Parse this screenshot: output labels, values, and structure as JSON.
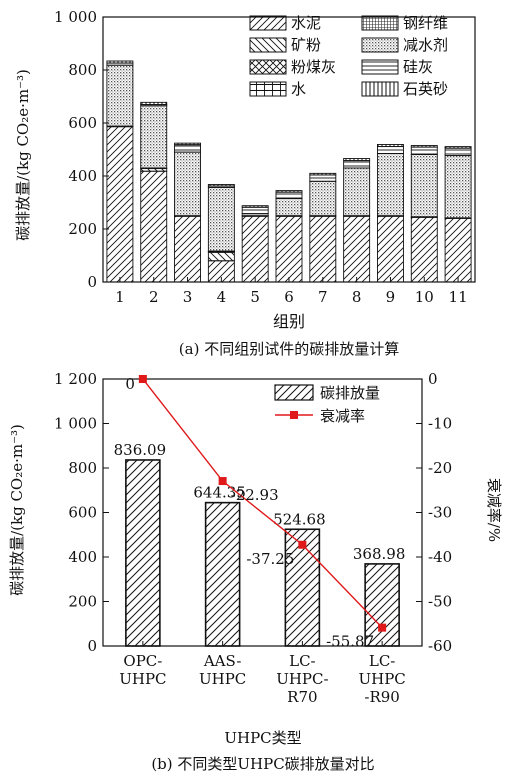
{
  "chart_data": [
    {
      "type": "bar",
      "stacked": true,
      "caption": "(a) 不同组别试件的碳排放量计算",
      "xlabel": "组别",
      "ylabel": "碳排放量/(kg CO₂e·m⁻³)",
      "ylim": [
        0,
        1000
      ],
      "yticks": [
        "0",
        "200",
        "400",
        "600",
        "800",
        "1 000"
      ],
      "categories": [
        "1",
        "2",
        "3",
        "4",
        "5",
        "6",
        "7",
        "8",
        "9",
        "10",
        "11"
      ],
      "legend_position": "top-right",
      "series": [
        {
          "name": "水泥",
          "pattern": "diag-fwd",
          "values": [
            586,
            418,
            248,
            80,
            248,
            248,
            248,
            248,
            248,
            244,
            240
          ]
        },
        {
          "name": "矿粉",
          "pattern": "diag-back",
          "values": [
            0,
            10,
            0,
            32,
            0,
            0,
            0,
            0,
            0,
            0,
            0
          ]
        },
        {
          "name": "粉煤灰",
          "pattern": "cross",
          "values": [
            0,
            0,
            0,
            3,
            0,
            0,
            0,
            0,
            0,
            0,
            0
          ]
        },
        {
          "name": "水",
          "pattern": "grid",
          "values": [
            2,
            2,
            2,
            2,
            2,
            2,
            2,
            2,
            2,
            2,
            2
          ]
        },
        {
          "name": "钢纤维",
          "pattern": "dense-grid",
          "values": [
            0,
            0,
            0,
            0,
            0,
            0,
            0,
            0,
            0,
            0,
            0
          ]
        },
        {
          "name": "减水剂",
          "pattern": "dots",
          "values": [
            230,
            235,
            240,
            240,
            8,
            65,
            130,
            180,
            235,
            235,
            235
          ]
        },
        {
          "name": "硅灰",
          "pattern": "horizontal",
          "values": [
            8,
            5,
            28,
            5,
            24,
            24,
            24,
            28,
            26,
            28,
            28
          ]
        },
        {
          "name": "石英砂",
          "pattern": "vertical",
          "values": [
            8,
            8,
            6,
            6,
            6,
            6,
            6,
            8,
            8,
            6,
            6
          ]
        }
      ]
    },
    {
      "type": "bar+line",
      "caption": "(b) 不同类型UHPC碳排放量对比",
      "xlabel": "UHPC类型",
      "ylabel_left": "碳排放量/(kg CO₂e·m⁻³)",
      "ylabel_right": "衰减率/%",
      "ylim_left": [
        0,
        1200
      ],
      "ylim_right": [
        -60,
        0
      ],
      "yticks_left": [
        "0",
        "200",
        "400",
        "600",
        "800",
        "1 000",
        "1 200"
      ],
      "yticks_right": [
        "0",
        "-10",
        "-20",
        "-30",
        "-40",
        "-50",
        "-60"
      ],
      "categories": [
        "OPC-\nUHPC",
        "AAS-\nUHPC",
        "LC-\nUHPC-\nR70",
        "LC-\nUHPC\n-R90"
      ],
      "legend_position": "top-right",
      "series": [
        {
          "name": "碳排放量",
          "kind": "bar",
          "values": [
            836.09,
            644.35,
            524.68,
            368.98
          ],
          "labels": [
            "836.09",
            "644.35",
            "524.68",
            "368.98"
          ]
        },
        {
          "name": "衰减率",
          "kind": "line",
          "color": "#e0191b",
          "values": [
            0,
            -22.93,
            -37.25,
            -55.87
          ],
          "labels": [
            "0",
            "-22.93",
            "-37.25",
            "-55.87"
          ]
        }
      ]
    }
  ]
}
